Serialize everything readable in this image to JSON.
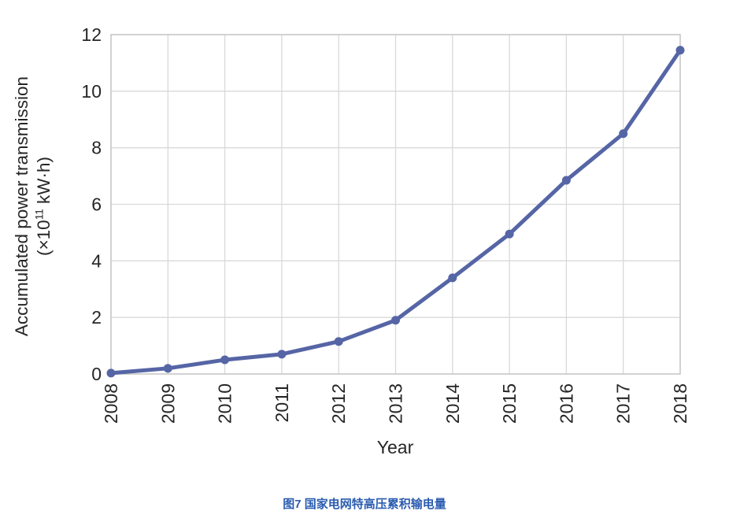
{
  "chart_data": {
    "type": "line",
    "title": "",
    "categories": [
      "2008",
      "2009",
      "2010",
      "2011",
      "2012",
      "2013",
      "2014",
      "2015",
      "2016",
      "2017",
      "2018"
    ],
    "values": [
      0.03,
      0.2,
      0.5,
      0.7,
      1.15,
      1.9,
      3.4,
      4.95,
      6.85,
      8.5,
      11.45
    ],
    "xlabel": "Year",
    "ylabel": "Accumulated power transmission (×10¹¹ kW·h)",
    "ylabel_line1": "Accumulated power transmission",
    "ylabel_line2_prefix": "(×10",
    "ylabel_line2_sup": "11",
    "ylabel_line2_suffix": " kW·h)",
    "ylim": [
      0,
      12
    ],
    "yticks": [
      0,
      2,
      4,
      6,
      8,
      10,
      12
    ],
    "grid": true,
    "legend": "none",
    "line_color": "#5565a5",
    "marker_color": "#5565a5",
    "grid_color": "#d9d9d9",
    "frame_color": "#c6c6c6",
    "tick_text_color": "#262626"
  },
  "caption": {
    "text": "图7  国家电网特高压累积输电量",
    "color": "#2b5cb0"
  }
}
